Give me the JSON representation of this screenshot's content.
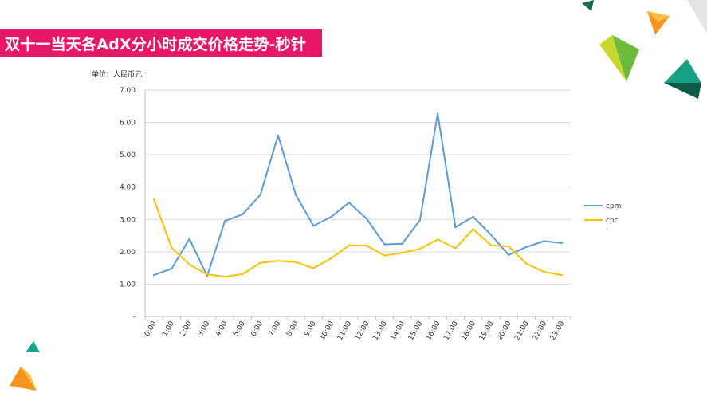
{
  "slide": {
    "title": "双十一当天各AdX分小时成交价格走势-秒针",
    "unit_label": "单位：人民币元",
    "colors": {
      "banner": "#e8176a",
      "cpm": "#5b9bd5",
      "cpc": "#ffc000"
    }
  },
  "chart_data": {
    "type": "line",
    "title": "双十一当天各AdX分小时成交价格走势-秒针",
    "xlabel": "",
    "ylabel": "单位：人民币元",
    "categories": [
      "0:00",
      "1:00",
      "2:00",
      "3:00",
      "4:00",
      "5:00",
      "6:00",
      "7:00",
      "8:00",
      "9:00",
      "10:00",
      "11:00",
      "12:00",
      "13:00",
      "14:00",
      "15:00",
      "16:00",
      "17:00",
      "18:00",
      "19:00",
      "20:00",
      "21:00",
      "22:00",
      "23:00"
    ],
    "series": [
      {
        "name": "cpm",
        "color": "#5b9bd5",
        "values": [
          1.28,
          1.48,
          2.4,
          1.25,
          2.95,
          3.16,
          3.76,
          5.6,
          3.76,
          2.8,
          3.08,
          3.52,
          3.02,
          2.23,
          2.25,
          2.98,
          6.27,
          2.76,
          3.08,
          2.53,
          1.9,
          2.15,
          2.33,
          2.27
        ]
      },
      {
        "name": "cpc",
        "color": "#ffc000",
        "values": [
          3.62,
          2.12,
          1.61,
          1.3,
          1.23,
          1.31,
          1.66,
          1.72,
          1.68,
          1.49,
          1.8,
          2.2,
          2.19,
          1.88,
          1.97,
          2.09,
          2.38,
          2.11,
          2.7,
          2.2,
          2.17,
          1.63,
          1.38,
          1.28
        ]
      }
    ],
    "y_ticks": [
      "-",
      "1.00",
      "2.00",
      "3.00",
      "4.00",
      "5.00",
      "6.00",
      "7.00"
    ],
    "ylim": [
      0,
      7
    ],
    "grid": true,
    "legend": "right"
  }
}
